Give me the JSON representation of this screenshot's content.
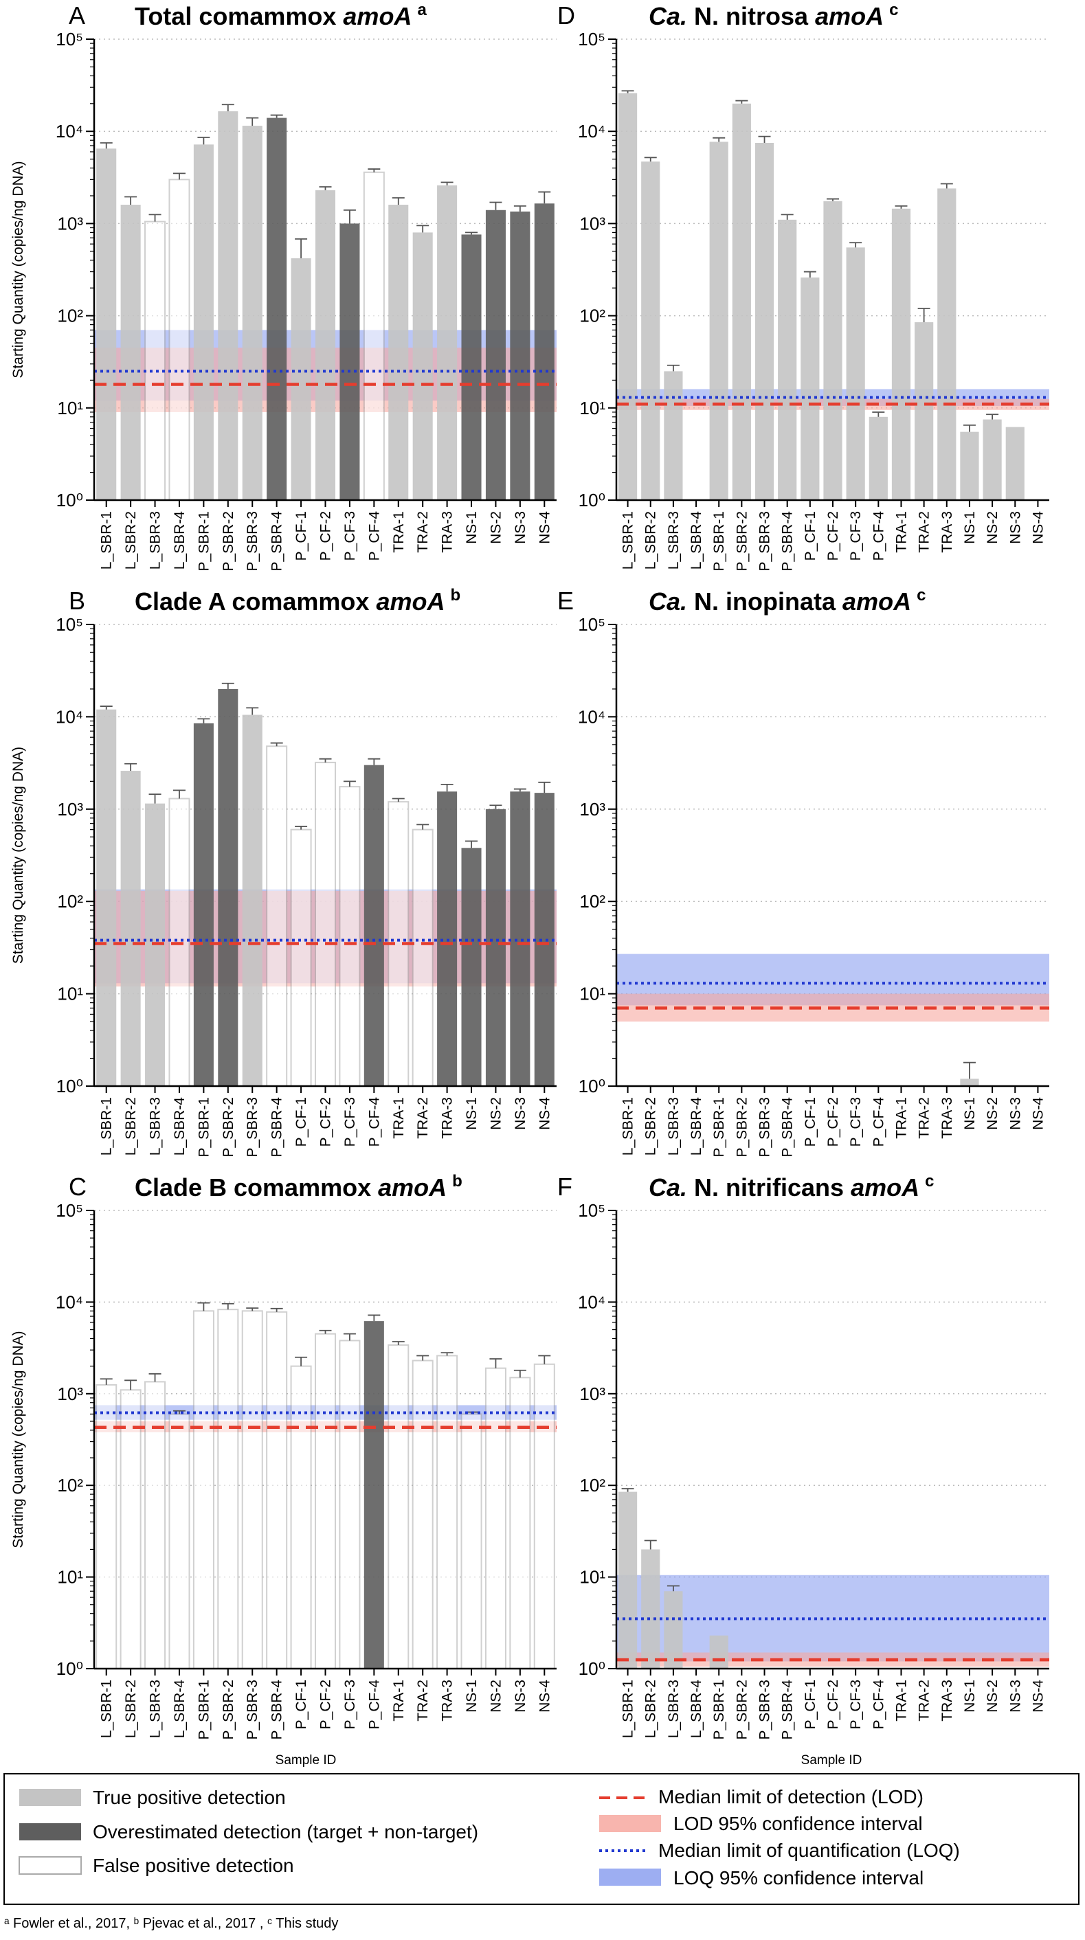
{
  "figure": {
    "y_axis_label": "Starting Quantity (copies/ng DNA)",
    "x_axis_label": "Sample ID",
    "footnote": "ᵃ Fowler et al., 2017,  ᵇ Pjevac et al., 2017 ,  ᶜ This study"
  },
  "legend": {
    "items": [
      {
        "label": "True positive detection",
        "kind": "true"
      },
      {
        "label": "Overestimated detection (target + non-target)",
        "kind": "over"
      },
      {
        "label": "False positive detection",
        "kind": "false"
      },
      {
        "label": "Median limit of detection (LOD)",
        "kind": "lod"
      },
      {
        "label": "LOD 95% confidence interval",
        "kind": "lodci"
      },
      {
        "label": "Median limit of quantification (LOQ)",
        "kind": "loq"
      },
      {
        "label": "LOQ 95% confidence interval",
        "kind": "loqci"
      }
    ]
  },
  "colors": {
    "true": "#c4c4c4",
    "over": "#5e5e5e",
    "false": "#ffffff",
    "outline": "#aaaaaa",
    "lod": "#e53d2e",
    "lod_ci": "#f7a8a0",
    "loq": "#2038d0",
    "loq_ci": "#8ca0f0",
    "grid": "#bbbbbb"
  },
  "chart_data": [
    {
      "type": "bar",
      "panel": "A",
      "title": "Total comammox ",
      "title_italic": "amoA",
      "superscript": "a",
      "yscale": "log",
      "ylim": [
        1,
        100000
      ],
      "tick_labels": [
        "10⁰",
        "10¹",
        "10²",
        "10³",
        "10⁴",
        "10⁵"
      ],
      "categories": [
        "L_SBR-1",
        "L_SBR-2",
        "L_SBR-3",
        "L_SBR-4",
        "P_SBR-1",
        "P_SBR-2",
        "P_SBR-3",
        "P_SBR-4",
        "P_CF-1",
        "P_CF-2",
        "P_CF-3",
        "P_CF-4",
        "TRA-1",
        "TRA-2",
        "TRA-3",
        "NS-1",
        "NS-2",
        "NS-3",
        "NS-4"
      ],
      "values": [
        6500,
        1600,
        1050,
        3000,
        7200,
        16500,
        11500,
        14000,
        420,
        2300,
        1000,
        3600,
        1600,
        800,
        2600,
        760,
        1400,
        1350,
        1650
      ],
      "errors": [
        7500,
        1950,
        1250,
        3500,
        8600,
        19500,
        14000,
        15000,
        680,
        2500,
        1400,
        3900,
        1900,
        950,
        2800,
        800,
        1700,
        1550,
        2200
      ],
      "detection": [
        "true",
        "true",
        "false",
        "false",
        "true",
        "true",
        "true",
        "over",
        "true",
        "true",
        "over",
        "false",
        "true",
        "true",
        "true",
        "over",
        "over",
        "over",
        "over"
      ],
      "lod": 18,
      "lod_ci": [
        9,
        45
      ],
      "loq": 25,
      "loq_ci": [
        12,
        70
      ]
    },
    {
      "type": "bar",
      "panel": "D",
      "title": "Ca. N. nitrosa ",
      "title_italic": "amoA",
      "superscript": "c",
      "yscale": "log",
      "ylim": [
        1,
        100000
      ],
      "tick_labels": [
        "10⁰",
        "10¹",
        "10²",
        "10³",
        "10⁴",
        "10⁵"
      ],
      "categories": [
        "L_SBR-1",
        "L_SBR-2",
        "L_SBR-3",
        "L_SBR-4",
        "P_SBR-1",
        "P_SBR-2",
        "P_SBR-3",
        "P_SBR-4",
        "P_CF-1",
        "P_CF-2",
        "P_CF-3",
        "P_CF-4",
        "TRA-1",
        "TRA-2",
        "TRA-3",
        "NS-1",
        "NS-2",
        "NS-3",
        "NS-4"
      ],
      "values": [
        26000,
        4700,
        25,
        null,
        7700,
        20000,
        7500,
        1100,
        260,
        1750,
        550,
        8,
        1450,
        85,
        2400,
        5.5,
        7.5,
        6.2,
        null
      ],
      "errors": [
        27500,
        5200,
        29,
        null,
        8500,
        21500,
        8800,
        1250,
        300,
        1850,
        620,
        9,
        1550,
        120,
        2700,
        6.5,
        8.5,
        null,
        null
      ],
      "detection": [
        "true",
        "true",
        "true",
        "true",
        "true",
        "true",
        "true",
        "true",
        "true",
        "true",
        "true",
        "true",
        "true",
        "true",
        "true",
        "true",
        "true",
        "true",
        "true"
      ],
      "lod": 11,
      "lod_ci": [
        9.5,
        12.5
      ],
      "loq": 13,
      "loq_ci": [
        10.5,
        16
      ]
    },
    {
      "type": "bar",
      "panel": "B",
      "title": "Clade A comammox ",
      "title_italic": "amoA",
      "superscript": "b",
      "yscale": "log",
      "ylim": [
        1,
        100000
      ],
      "tick_labels": [
        "10⁰",
        "10¹",
        "10²",
        "10³",
        "10⁴",
        "10⁵"
      ],
      "categories": [
        "L_SBR-1",
        "L_SBR-2",
        "L_SBR-3",
        "L_SBR-4",
        "P_SBR-1",
        "P_SBR-2",
        "P_SBR-3",
        "P_SBR-4",
        "P_CF-1",
        "P_CF-2",
        "P_CF-3",
        "P_CF-4",
        "TRA-1",
        "TRA-2",
        "TRA-3",
        "NS-1",
        "NS-2",
        "NS-3",
        "NS-4"
      ],
      "values": [
        12000,
        2600,
        1150,
        1300,
        8500,
        20000,
        10500,
        4800,
        600,
        3200,
        1750,
        3000,
        1200,
        600,
        1550,
        380,
        1000,
        1550,
        1500
      ],
      "errors": [
        13000,
        3100,
        1450,
        1600,
        9500,
        23000,
        12500,
        5200,
        650,
        3500,
        2000,
        3500,
        1300,
        680,
        1850,
        450,
        1100,
        1650,
        1950
      ],
      "detection": [
        "true",
        "true",
        "true",
        "false",
        "over",
        "over",
        "true",
        "false",
        "false",
        "false",
        "false",
        "over",
        "false",
        "false",
        "over",
        "over",
        "over",
        "over",
        "over"
      ],
      "lod": 35,
      "lod_ci": [
        12,
        130
      ],
      "loq": 38,
      "loq_ci": [
        13,
        135
      ]
    },
    {
      "type": "bar",
      "panel": "E",
      "title": "Ca. N. inopinata ",
      "title_italic": "amoA",
      "superscript": "c",
      "yscale": "log",
      "ylim": [
        1,
        100000
      ],
      "tick_labels": [
        "10⁰",
        "10¹",
        "10²",
        "10³",
        "10⁴",
        "10⁵"
      ],
      "categories": [
        "L_SBR-1",
        "L_SBR-2",
        "L_SBR-3",
        "L_SBR-4",
        "P_SBR-1",
        "P_SBR-2",
        "P_SBR-3",
        "P_SBR-4",
        "P_CF-1",
        "P_CF-2",
        "P_CF-3",
        "P_CF-4",
        "TRA-1",
        "TRA-2",
        "TRA-3",
        "NS-1",
        "NS-2",
        "NS-3",
        "NS-4"
      ],
      "values": [
        null,
        null,
        null,
        null,
        null,
        null,
        null,
        null,
        null,
        null,
        null,
        null,
        null,
        null,
        null,
        1.2,
        null,
        null,
        null
      ],
      "errors": [
        null,
        null,
        null,
        null,
        null,
        null,
        null,
        null,
        null,
        null,
        null,
        null,
        null,
        null,
        null,
        1.8,
        null,
        null,
        null
      ],
      "detection": [
        "true",
        "true",
        "true",
        "true",
        "true",
        "true",
        "true",
        "true",
        "true",
        "true",
        "true",
        "true",
        "true",
        "true",
        "true",
        "true",
        "true",
        "true",
        "true"
      ],
      "lod": 7,
      "lod_ci": [
        5,
        10
      ],
      "loq": 13,
      "loq_ci": [
        7.5,
        27
      ]
    },
    {
      "type": "bar",
      "panel": "C",
      "title": "Clade B comammox ",
      "title_italic": "amoA",
      "superscript": "b",
      "yscale": "log",
      "ylim": [
        1,
        100000
      ],
      "tick_labels": [
        "10⁰",
        "10¹",
        "10²",
        "10³",
        "10⁴",
        "10⁵"
      ],
      "categories": [
        "L_SBR-1",
        "L_SBR-2",
        "L_SBR-3",
        "L_SBR-4",
        "P_SBR-1",
        "P_SBR-2",
        "P_SBR-3",
        "P_SBR-4",
        "P_CF-1",
        "P_CF-2",
        "P_CF-3",
        "P_CF-4",
        "TRA-1",
        "TRA-2",
        "TRA-3",
        "NS-1",
        "NS-2",
        "NS-3",
        "NS-4"
      ],
      "values": [
        1250,
        1100,
        1350,
        600,
        8000,
        8300,
        8000,
        7800,
        2000,
        4500,
        3800,
        6200,
        3400,
        2300,
        2600,
        600,
        1900,
        1500,
        2100
      ],
      "errors": [
        1450,
        1400,
        1650,
        650,
        9800,
        9600,
        8600,
        8500,
        2500,
        4900,
        4500,
        7200,
        3700,
        2600,
        2800,
        630,
        2400,
        1800,
        2600
      ],
      "detection": [
        "false",
        "false",
        "false",
        "false",
        "false",
        "false",
        "false",
        "false",
        "false",
        "false",
        "false",
        "over",
        "false",
        "false",
        "false",
        "false",
        "false",
        "false",
        "false"
      ],
      "lod": 430,
      "lod_ci": [
        380,
        500
      ],
      "loq": 620,
      "loq_ci": [
        520,
        750
      ]
    },
    {
      "type": "bar",
      "panel": "F",
      "title": "Ca. N. nitrificans ",
      "title_italic": "amoA",
      "superscript": "c",
      "yscale": "log",
      "ylim": [
        1,
        100000
      ],
      "tick_labels": [
        "10⁰",
        "10¹",
        "10²",
        "10³",
        "10⁴",
        "10⁵"
      ],
      "categories": [
        "L_SBR-1",
        "L_SBR-2",
        "L_SBR-3",
        "L_SBR-4",
        "P_SBR-1",
        "P_SBR-2",
        "P_SBR-3",
        "P_SBR-4",
        "P_CF-1",
        "P_CF-2",
        "P_CF-3",
        "P_CF-4",
        "TRA-1",
        "TRA-2",
        "TRA-3",
        "NS-1",
        "NS-2",
        "NS-3",
        "NS-4"
      ],
      "values": [
        85,
        20,
        7,
        null,
        2.3,
        null,
        null,
        null,
        null,
        null,
        null,
        null,
        null,
        null,
        null,
        null,
        null,
        null,
        null
      ],
      "errors": [
        92,
        25,
        8,
        null,
        null,
        null,
        null,
        null,
        null,
        null,
        null,
        null,
        null,
        null,
        null,
        null,
        null,
        null,
        null
      ],
      "detection": [
        "true",
        "true",
        "true",
        "true",
        "true",
        "true",
        "true",
        "true",
        "true",
        "true",
        "true",
        "true",
        "true",
        "true",
        "true",
        "true",
        "true",
        "true",
        "true"
      ],
      "lod": 1.25,
      "lod_ci": [
        1.05,
        1.5
      ],
      "loq": 3.5,
      "loq_ci": [
        1.2,
        10.5
      ]
    }
  ]
}
